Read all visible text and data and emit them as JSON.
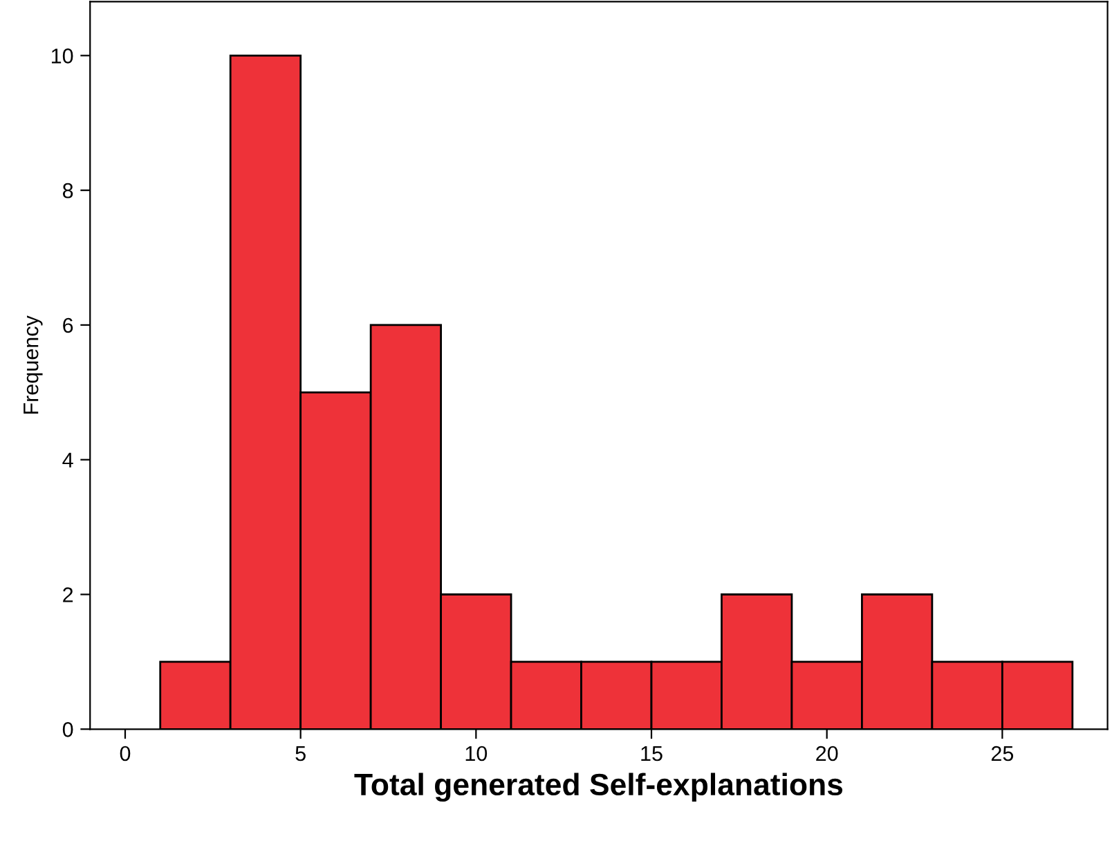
{
  "chart_data": {
    "type": "histogram",
    "xlabel": "Total generated Self-explanations",
    "ylabel": "Frequency",
    "bins": [
      1,
      3,
      5,
      7,
      9,
      11,
      13,
      15,
      17,
      19,
      21,
      23,
      25,
      27
    ],
    "values": [
      1,
      10,
      5,
      6,
      2,
      1,
      1,
      1,
      2,
      1,
      2,
      1,
      1
    ],
    "color": "#ee3239",
    "xlim": [
      -1,
      28
    ],
    "xticks": [
      0,
      5,
      10,
      15,
      20,
      25
    ],
    "ylim": [
      0,
      10.8
    ],
    "yticks": [
      0,
      2,
      4,
      6,
      8,
      10
    ],
    "grid": false
  }
}
